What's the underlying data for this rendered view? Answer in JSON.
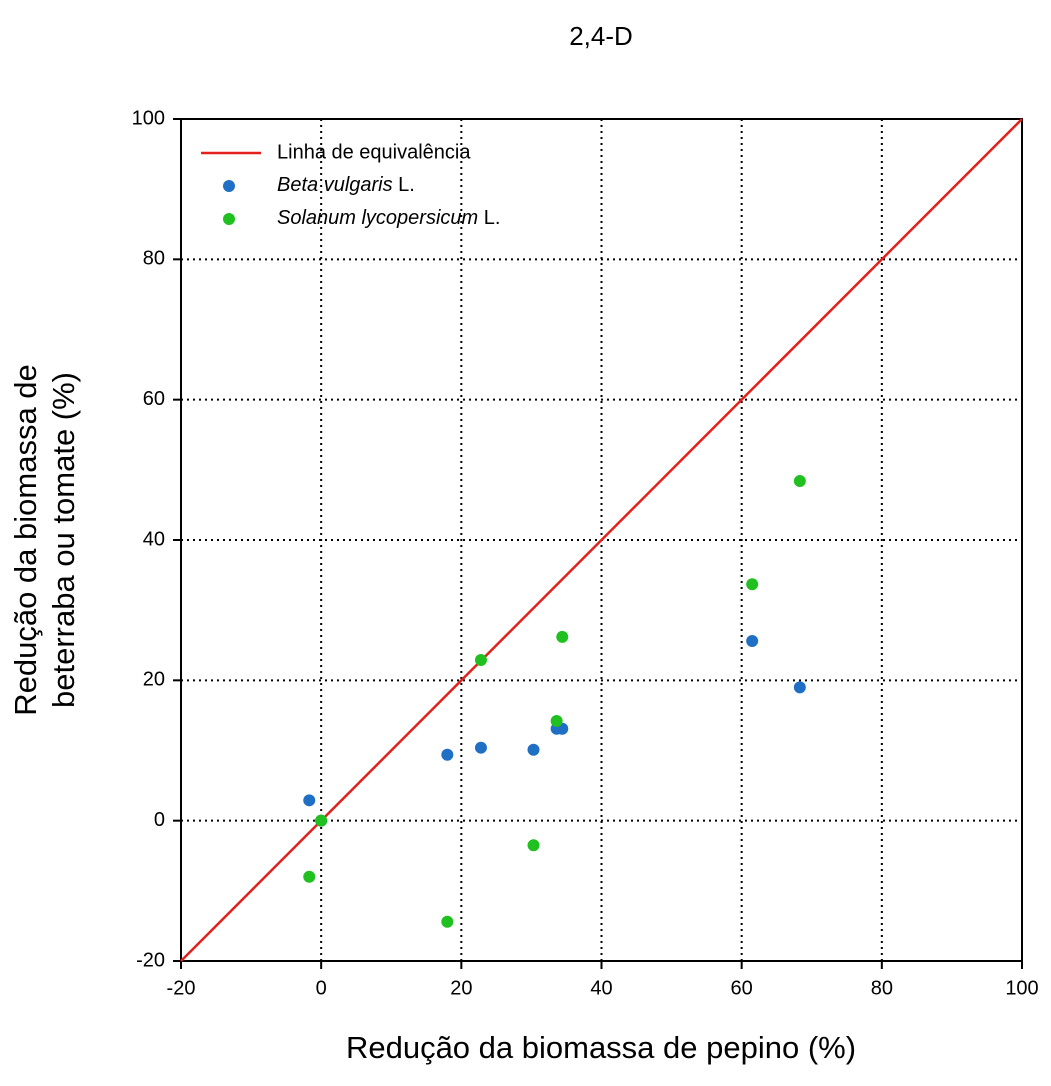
{
  "chart_data": {
    "type": "scatter",
    "title": "2,4-D",
    "xlabel": "Redução da biomassa de pepino (%)",
    "ylabel": [
      "Redução da biomassa de",
      "beterraba ou tomate (%)"
    ],
    "xlim": [
      -20,
      100
    ],
    "ylim": [
      -20,
      100
    ],
    "xticks": [
      -20,
      0,
      20,
      40,
      60,
      80,
      100
    ],
    "yticks": [
      -20,
      0,
      20,
      40,
      60,
      80,
      100
    ],
    "grid": true,
    "legend": "upper-left",
    "reference_line": {
      "name": "Linha de equivalência",
      "color": "#e3201b",
      "x": [
        -20,
        100
      ],
      "y": [
        -20,
        100
      ]
    },
    "x": [
      -1.7,
      0,
      18,
      22.8,
      30.3,
      33.6,
      34.4,
      61.5,
      68.3
    ],
    "series": [
      {
        "name": "Beta vulgaris L.",
        "color": "#1f6fc5",
        "values": [
          2.9,
          0,
          9.4,
          10.4,
          10.1,
          13.1,
          13.1,
          25.6,
          19.0
        ]
      },
      {
        "name": "Solanum lycopersicum L.",
        "color": "#1fc01f",
        "values": [
          -8.0,
          0,
          -14.4,
          22.9,
          -3.5,
          14.2,
          26.2,
          33.7,
          48.4
        ]
      }
    ]
  }
}
